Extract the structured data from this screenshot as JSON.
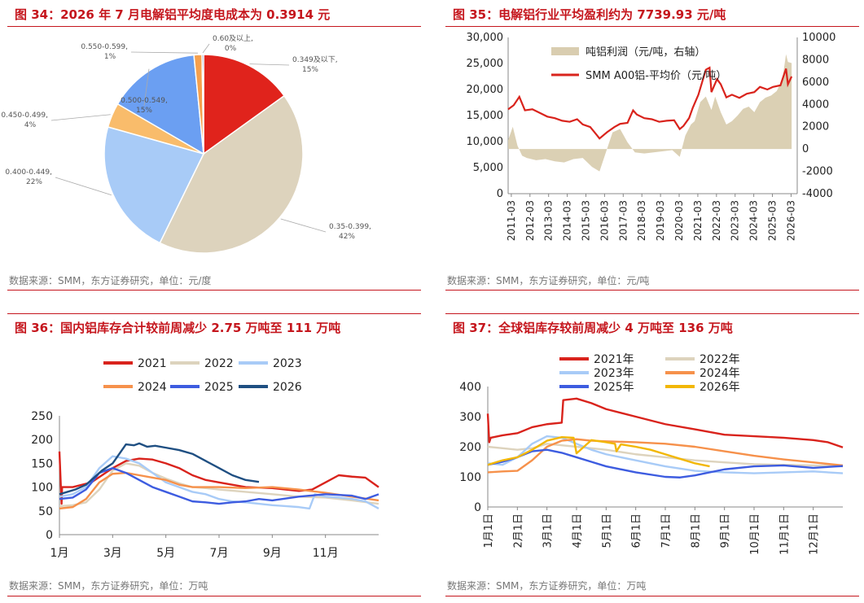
{
  "panels": [
    {
      "title": "图 34：2026 年 7 月电解铝平均度电成本为 0.3914 元",
      "source": "数据来源：SMM，东方证券研究，单位：元/度",
      "chart_data": {
        "type": "pie",
        "slices": [
          {
            "label": "0.349及以下,",
            "pct": "15%",
            "value": 15,
            "color": "#e0231c"
          },
          {
            "label": "0.35-0.399,",
            "pct": "42%",
            "value": 42,
            "color": "#ddd3bd"
          },
          {
            "label": "0.400-0.449,",
            "pct": "22%",
            "value": 22,
            "color": "#a8cbf7"
          },
          {
            "label": "0.450-0.499,",
            "pct": "4%",
            "value": 4,
            "color": "#f9bc6b"
          },
          {
            "label": "0.500-0.549,",
            "pct": "15%",
            "value": 15,
            "color": "#6b9ff2"
          },
          {
            "label": "0.550-0.599,",
            "pct": "1%",
            "value": 1.3,
            "color": "#f6a04d"
          },
          {
            "label": "0.60及以上,",
            "pct": "0%",
            "value": 0.25,
            "color": "#2e3e8c"
          }
        ]
      }
    },
    {
      "title": "图 35：电解铝行业平均盈利约为 7739.93 元/吨",
      "source": "数据来源：SMM，东方证券研究，单位：元/吨",
      "chart_data": {
        "type": "line",
        "series": [
          {
            "name": "吨铝利润（元/吨，右轴）",
            "kind": "area",
            "axis": "right",
            "color": "#d9cdb0",
            "x": [
              2011.0,
              2011.25,
              2011.5,
              2011.75,
              2012.0,
              2012.5,
              2013.0,
              2013.5,
              2014.0,
              2014.5,
              2015.0,
              2015.5,
              2015.9,
              2016.2,
              2016.6,
              2017.0,
              2017.4,
              2017.8,
              2018.3,
              2018.8,
              2019.3,
              2019.8,
              2020.2,
              2020.5,
              2020.8,
              2021.0,
              2021.3,
              2021.6,
              2021.9,
              2022.1,
              2022.4,
              2022.7,
              2023.0,
              2023.3,
              2023.6,
              2023.9,
              2024.2,
              2024.5,
              2024.8,
              2025.1,
              2025.4,
              2025.7,
              2025.9,
              2026.0,
              2026.2
            ],
            "values": [
              800,
              2000,
              300,
              -600,
              -800,
              -1000,
              -900,
              -1100,
              -1200,
              -900,
              -800,
              -1600,
              -2000,
              -500,
              1500,
              1800,
              600,
              -300,
              -400,
              -300,
              -200,
              -100,
              -700,
              1200,
              2200,
              2500,
              4200,
              4700,
              3500,
              4700,
              3300,
              2200,
              2500,
              3000,
              3600,
              3800,
              3300,
              4200,
              4600,
              4800,
              5200,
              6200,
              8500,
              7800,
              7700
            ]
          },
          {
            "name": "SMM A00铝-平均价（元/吨）",
            "kind": "line",
            "axis": "left",
            "color": "#d9231c",
            "x": [
              2011.0,
              2011.3,
              2011.6,
              2011.9,
              2012.3,
              2012.7,
              2013.1,
              2013.5,
              2013.9,
              2014.3,
              2014.7,
              2015.0,
              2015.4,
              2015.7,
              2015.9,
              2016.3,
              2016.7,
              2017.0,
              2017.4,
              2017.7,
              2017.9,
              2018.3,
              2018.7,
              2019.1,
              2019.5,
              2019.9,
              2020.2,
              2020.4,
              2020.7,
              2020.9,
              2021.2,
              2021.6,
              2021.8,
              2021.9,
              2022.2,
              2022.4,
              2022.7,
              2023.0,
              2023.4,
              2023.8,
              2024.2,
              2024.5,
              2024.9,
              2025.2,
              2025.6,
              2025.9,
              2026.0,
              2026.2
            ],
            "values": [
              16200,
              17000,
              18600,
              16000,
              16200,
              15500,
              14800,
              14500,
              14000,
              13800,
              14300,
              13300,
              12800,
              11500,
              10600,
              11800,
              12800,
              13400,
              13600,
              16000,
              15200,
              14500,
              14300,
              13800,
              14000,
              14100,
              12400,
              13000,
              14500,
              16500,
              19000,
              23800,
              24200,
              19500,
              22000,
              21000,
              18500,
              19000,
              18400,
              19200,
              19500,
              20500,
              20000,
              20500,
              20800,
              24000,
              21000,
              22500
            ]
          }
        ],
        "x_ticks": [
          "2011-03",
          "2012-03",
          "2013-03",
          "2014-03",
          "2015-03",
          "2016-03",
          "2017-03",
          "2018-03",
          "2019-03",
          "2020-03",
          "2021-03",
          "2022-03",
          "2023-03",
          "2024-03",
          "2025-03",
          "2026-03"
        ],
        "y_left_ticks": [
          "0",
          "5,000",
          "10,000",
          "15,000",
          "20,000",
          "25,000",
          "30,000"
        ],
        "y_right_ticks": [
          "-4000",
          "-2000",
          "0",
          "2000",
          "4000",
          "6000",
          "8000",
          "10000"
        ],
        "ylim_left": [
          0,
          30000
        ],
        "ylim_right": [
          -4000,
          10000
        ],
        "legend_labels": [
          "吨铝利润（元/吨，右轴）",
          "SMM A00铝-平均价（元/吨）"
        ]
      }
    },
    {
      "title": "图 36：国内铝库存合计较前周减少 2.75 万吨至 111 万吨",
      "source": "数据来源：SMM，东方证券研究，单位：万吨",
      "chart_data": {
        "type": "line",
        "x_ticks": [
          "1月",
          "3月",
          "5月",
          "7月",
          "9月",
          "11月"
        ],
        "y_ticks": [
          "0",
          "50",
          "100",
          "150",
          "200",
          "250"
        ],
        "ylim": [
          0,
          250
        ],
        "series": [
          {
            "name": "2021",
            "color": "#d9231c",
            "x": [
              0.0,
              0.08,
              0.1,
              0.5,
              1.2,
              2.0,
              2.5,
              3.0,
              3.5,
              4.0,
              4.5,
              5.0,
              5.5,
              6.0,
              7.0,
              8.0,
              9.0,
              9.5,
              10.0,
              10.5,
              11.0,
              11.5,
              12.0
            ],
            "values": [
              175,
              65,
              100,
              100,
              110,
              140,
              155,
              160,
              158,
              150,
              140,
              125,
              115,
              110,
              100,
              98,
              92,
              95,
              110,
              125,
              122,
              120,
              100
            ]
          },
          {
            "name": "2022",
            "color": "#ddd3bd",
            "x": [
              0.0,
              0.5,
              1.0,
              1.5,
              2.0,
              2.5,
              3.0,
              3.5,
              4.0,
              4.5,
              5.0,
              5.5,
              6.0,
              7.0,
              8.0,
              9.0,
              10.0,
              11.0,
              12.0
            ],
            "values": [
              60,
              62,
              68,
              95,
              135,
              150,
              145,
              130,
              118,
              108,
              100,
              98,
              95,
              90,
              85,
              80,
              78,
              72,
              65
            ]
          },
          {
            "name": "2023",
            "color": "#a8cbf7",
            "x": [
              0.0,
              0.5,
              1.0,
              1.5,
              2.0,
              2.5,
              3.0,
              3.5,
              4.0,
              4.5,
              5.0,
              5.5,
              6.0,
              6.5,
              7.0,
              7.5,
              8.0,
              8.5,
              9.0,
              9.4,
              9.6,
              10.0,
              10.5,
              11.0,
              11.5,
              12.0
            ],
            "values": [
              80,
              85,
              100,
              140,
              165,
              160,
              150,
              130,
              110,
              100,
              90,
              85,
              75,
              70,
              68,
              65,
              62,
              60,
              58,
              55,
              85,
              80,
              78,
              75,
              70,
              55
            ]
          },
          {
            "name": "2024",
            "color": "#f6914b",
            "x": [
              0.0,
              0.5,
              1.0,
              1.5,
              2.0,
              2.5,
              3.0,
              3.5,
              4.0,
              4.5,
              5.0,
              5.5,
              6.0,
              7.0,
              8.0,
              9.0,
              10.0,
              11.0,
              12.0
            ],
            "values": [
              55,
              58,
              75,
              110,
              128,
              130,
              125,
              120,
              115,
              105,
              100,
              100,
              100,
              98,
              100,
              95,
              88,
              80,
              72
            ]
          },
          {
            "name": "2025",
            "color": "#3d5ce0",
            "x": [
              0.0,
              0.5,
              1.0,
              1.5,
              2.0,
              2.5,
              3.0,
              3.5,
              4.0,
              4.5,
              5.0,
              5.5,
              6.0,
              6.5,
              7.0,
              7.5,
              8.0,
              9.0,
              10.0,
              11.0,
              11.5,
              12.0
            ],
            "values": [
              75,
              78,
              95,
              130,
              140,
              130,
              115,
              100,
              90,
              80,
              70,
              68,
              65,
              68,
              70,
              75,
              72,
              80,
              85,
              82,
              75,
              85
            ]
          },
          {
            "name": "2026",
            "color": "#1f4f82",
            "x": [
              0.0,
              0.3,
              0.6,
              1.0,
              1.3,
              1.6,
              2.0,
              2.5,
              2.8,
              3.0,
              3.3,
              3.6,
              4.0,
              4.5,
              5.0,
              5.5,
              6.0,
              6.5,
              7.0,
              7.5
            ],
            "values": [
              85,
              90,
              95,
              105,
              120,
              135,
              150,
              190,
              188,
              192,
              185,
              187,
              183,
              178,
              170,
              155,
              140,
              125,
              115,
              111
            ]
          }
        ]
      }
    },
    {
      "title": "图 37：全球铝库存较前周减少 4 万吨至 136 万吨",
      "source": "数据来源：SMM，东方证券研究，单位：万吨",
      "chart_data": {
        "type": "line",
        "x_ticks": [
          "1月1日",
          "2月1日",
          "3月1日",
          "4月1日",
          "5月1日",
          "6月1日",
          "7月1日",
          "8月1日",
          "9月1日",
          "10月1日",
          "11月1日",
          "12月1日"
        ],
        "y_ticks": [
          "0",
          "100",
          "200",
          "300",
          "400"
        ],
        "ylim": [
          0,
          400
        ],
        "series": [
          {
            "name": "2021年",
            "color": "#d9231c",
            "x": [
              0.0,
              0.05,
              0.1,
              0.5,
              1.0,
              1.5,
              2.0,
              2.5,
              2.55,
              3.0,
              3.5,
              4.0,
              5.0,
              6.0,
              7.0,
              8.0,
              9.0,
              10.0,
              11.0,
              11.5,
              12.0
            ],
            "values": [
              310,
              215,
              230,
              238,
              245,
              265,
              275,
              280,
              355,
              360,
              345,
              325,
              300,
              275,
              258,
              240,
              235,
              230,
              222,
              215,
              198
            ]
          },
          {
            "name": "2022年",
            "color": "#ddd3bd",
            "x": [
              0.0,
              0.5,
              1.0,
              1.5,
              2.0,
              2.5,
              3.0,
              4.0,
              5.0,
              6.0,
              7.0,
              8.0,
              9.0,
              10.0,
              11.0,
              12.0
            ],
            "values": [
              200,
              195,
              190,
              195,
              210,
              205,
              200,
              190,
              175,
              165,
              155,
              148,
              142,
              140,
              138,
              135
            ]
          },
          {
            "name": "2023年",
            "color": "#a8cbf7",
            "x": [
              0.0,
              0.5,
              1.0,
              1.5,
              2.0,
              2.5,
              3.0,
              3.5,
              4.0,
              5.0,
              6.0,
              7.0,
              8.0,
              9.0,
              10.0,
              11.0,
              12.0
            ],
            "values": [
              145,
              140,
              165,
              210,
              235,
              230,
              210,
              190,
              175,
              155,
              135,
              120,
              115,
              112,
              115,
              118,
              112
            ]
          },
          {
            "name": "2024年",
            "color": "#f6914b",
            "x": [
              0.0,
              0.5,
              1.0,
              1.5,
              2.0,
              2.5,
              3.0,
              3.5,
              4.0,
              5.0,
              6.0,
              7.0,
              8.0,
              9.0,
              10.0,
              11.0,
              12.0
            ],
            "values": [
              115,
              118,
              120,
              155,
              200,
              220,
              225,
              220,
              218,
              215,
              210,
              200,
              185,
              170,
              158,
              148,
              138
            ]
          },
          {
            "name": "2025年",
            "color": "#3d5ce0",
            "x": [
              0.0,
              0.5,
              1.0,
              1.5,
              2.0,
              2.5,
              3.0,
              3.5,
              4.0,
              5.0,
              6.0,
              6.5,
              7.0,
              8.0,
              9.0,
              10.0,
              11.0,
              12.0
            ],
            "values": [
              140,
              150,
              165,
              185,
              190,
              180,
              165,
              150,
              135,
              115,
              100,
              98,
              105,
              125,
              135,
              138,
              130,
              136
            ]
          },
          {
            "name": "2026年",
            "color": "#f2b705",
            "x": [
              0.0,
              0.5,
              1.0,
              1.5,
              2.0,
              2.5,
              2.9,
              3.0,
              3.5,
              4.0,
              4.3,
              4.35,
              4.5,
              5.0,
              5.5,
              6.0,
              6.5,
              7.0,
              7.5
            ],
            "values": [
              140,
              155,
              165,
              190,
              220,
              232,
              230,
              178,
              222,
              215,
              210,
              185,
              208,
              200,
              190,
              175,
              160,
              145,
              135
            ]
          }
        ]
      }
    }
  ]
}
